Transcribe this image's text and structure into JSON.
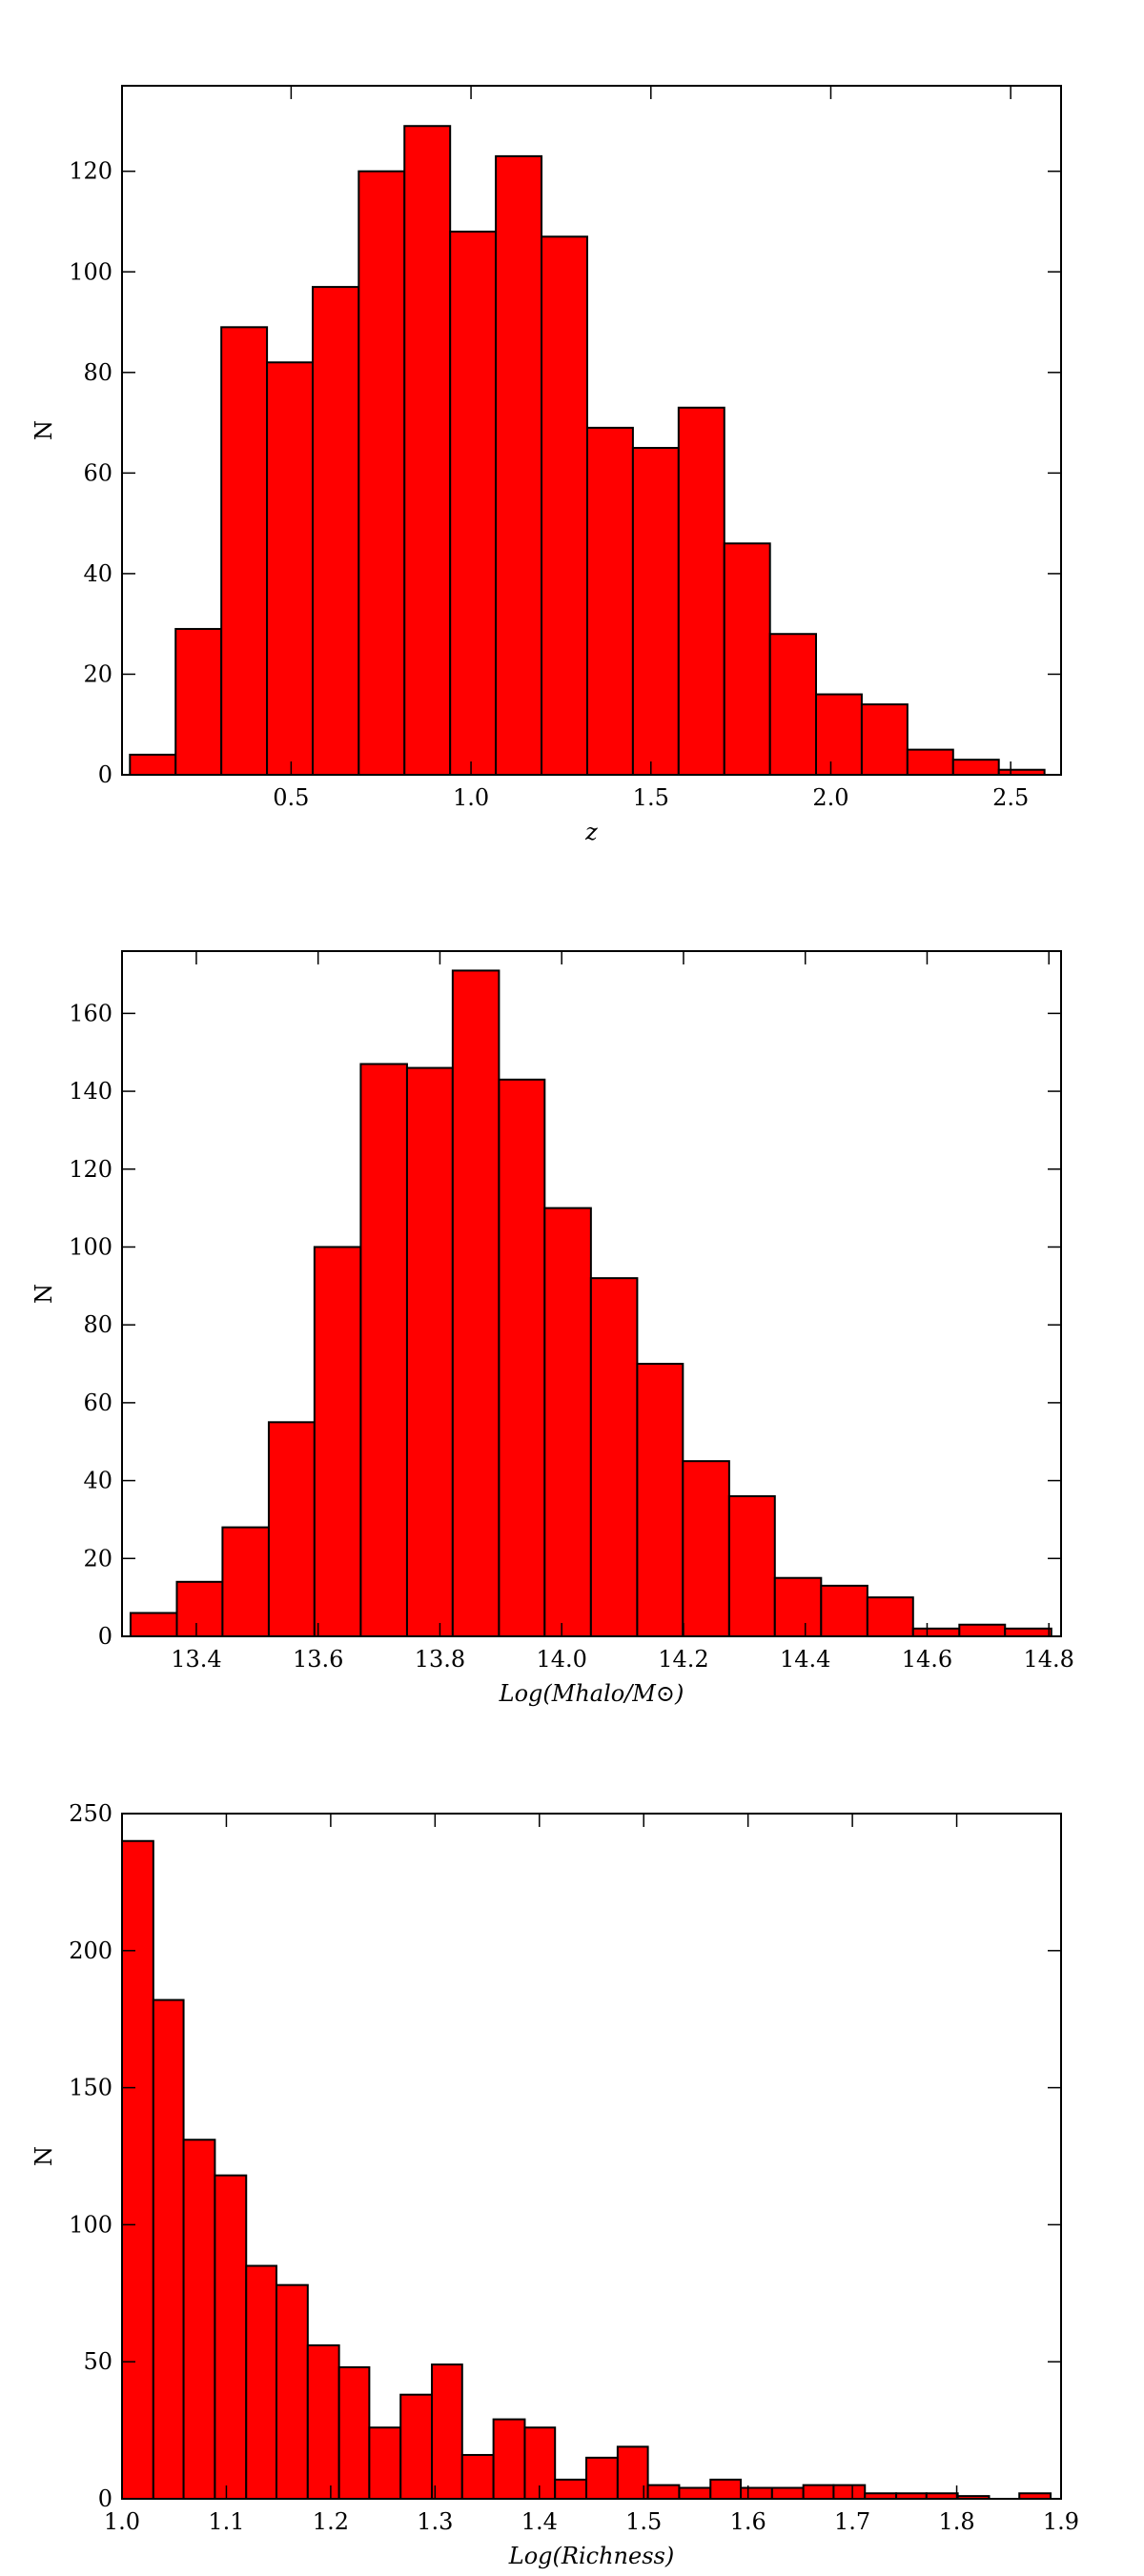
{
  "chart_data": [
    {
      "type": "histogram",
      "x_label": "z",
      "y_label": "N",
      "color": "#ff0000",
      "edgecolor": "#000000",
      "bins": [
        0.052,
        0.179,
        0.306,
        0.433,
        0.56,
        0.688,
        0.815,
        0.942,
        1.069,
        1.196,
        1.323,
        1.45,
        1.577,
        1.704,
        1.831,
        1.959,
        2.086,
        2.213,
        2.34,
        2.467,
        2.594
      ],
      "counts": [
        4,
        29,
        89,
        82,
        97,
        120,
        129,
        108,
        123,
        107,
        69,
        65,
        73,
        46,
        28,
        16,
        14,
        5,
        3,
        1
      ],
      "xlim": [
        0.03,
        2.64
      ],
      "xticks": [
        0.5,
        {
          "value": 1,
          "label": "1.0"
        },
        1.5,
        {
          "value": 2,
          "label": "2.0"
        },
        2.5
      ],
      "ylim": [
        0,
        137
      ],
      "yticks": [
        0,
        20,
        40,
        60,
        80,
        100,
        120
      ]
    },
    {
      "type": "histogram",
      "x_label": "Log(Mhalo/M⊙)",
      "y_label": "N",
      "color": "#ff0000",
      "edgecolor": "#000000",
      "bins": [
        13.292,
        13.368,
        13.443,
        13.519,
        13.594,
        13.67,
        13.746,
        13.821,
        13.897,
        13.972,
        14.048,
        14.124,
        14.199,
        14.275,
        14.35,
        14.426,
        14.502,
        14.577,
        14.653,
        14.728,
        14.804
      ],
      "counts": [
        6,
        14,
        28,
        55,
        100,
        147,
        146,
        171,
        143,
        110,
        92,
        70,
        45,
        36,
        15,
        13,
        10,
        2,
        3,
        2
      ],
      "xlim": [
        13.278,
        14.82
      ],
      "xticks": [
        13.4,
        13.6,
        13.8,
        {
          "value": 14,
          "label": "14.0"
        },
        14.2,
        14.4,
        14.6,
        14.8
      ],
      "ylim": [
        0,
        176
      ],
      "yticks": [
        0,
        20,
        40,
        60,
        80,
        100,
        120,
        140,
        160
      ]
    },
    {
      "type": "histogram",
      "x_label": "Log(Richness)",
      "y_label": "N",
      "color": "#ff0000",
      "edgecolor": "#000000",
      "bins": [
        1.0,
        1.03,
        1.059,
        1.089,
        1.119,
        1.148,
        1.178,
        1.208,
        1.237,
        1.267,
        1.297,
        1.326,
        1.356,
        1.386,
        1.415,
        1.445,
        1.475,
        1.504,
        1.534,
        1.564,
        1.593,
        1.623,
        1.653,
        1.682,
        1.712,
        1.742,
        1.771,
        1.801,
        1.831,
        1.86,
        1.89
      ],
      "counts": [
        240,
        182,
        131,
        118,
        85,
        78,
        56,
        48,
        26,
        38,
        49,
        16,
        29,
        26,
        7,
        15,
        19,
        5,
        4,
        7,
        4,
        4,
        5,
        5,
        2,
        2,
        2,
        1,
        0,
        2
      ],
      "xlim": [
        1,
        1.9
      ],
      "xticks": [
        {
          "value": 1,
          "label": "1.0"
        },
        1.1,
        1.2,
        1.3,
        1.4,
        1.5,
        1.6,
        1.7,
        1.8,
        1.9
      ],
      "ylim": [
        0,
        250
      ],
      "yticks": [
        0,
        50,
        100,
        150,
        200,
        250
      ]
    }
  ]
}
